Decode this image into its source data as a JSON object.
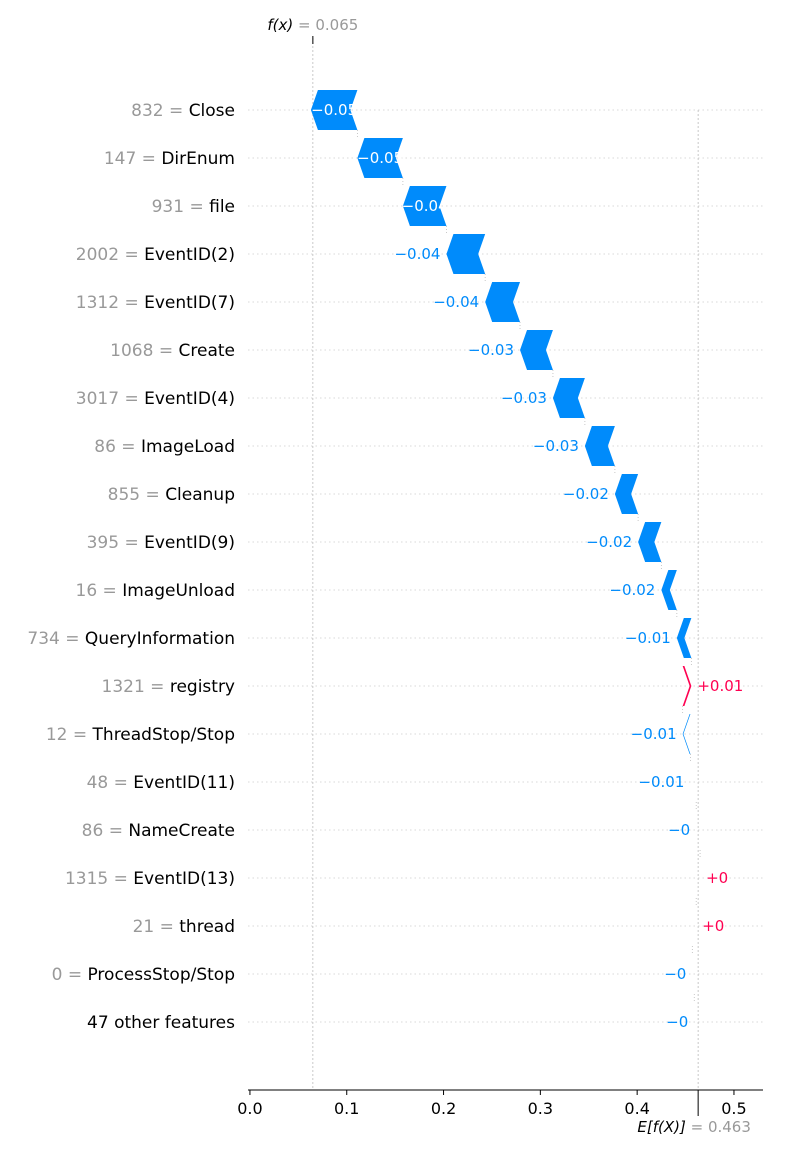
{
  "chart_data": {
    "type": "waterfall",
    "fx_label": "f(x)",
    "fx_value": "= 0.065",
    "efx_label": "E[f(X)]",
    "efx_value": "= 0.463",
    "fx": 0.065,
    "efx": 0.463,
    "xlim": [
      -0.002,
      0.53
    ],
    "xticks": [
      "0.0",
      "0.1",
      "0.2",
      "0.3",
      "0.4",
      "0.5"
    ],
    "features": [
      {
        "value": "832",
        "name": "Close",
        "shap": -0.048,
        "label": "−0.05"
      },
      {
        "value": "147",
        "name": "DirEnum",
        "shap": -0.047,
        "label": "−0.05"
      },
      {
        "value": "931",
        "name": "file",
        "shap": -0.045,
        "label": "−0.04"
      },
      {
        "value": "2002",
        "name": "EventID(2)",
        "shap": -0.04,
        "label": "−0.04"
      },
      {
        "value": "1312",
        "name": "EventID(7)",
        "shap": -0.036,
        "label": "−0.04"
      },
      {
        "value": "1068",
        "name": "Create",
        "shap": -0.034,
        "label": "−0.03"
      },
      {
        "value": "3017",
        "name": "EventID(4)",
        "shap": -0.033,
        "label": "−0.03"
      },
      {
        "value": "86",
        "name": "ImageLoad",
        "shap": -0.031,
        "label": "−0.03"
      },
      {
        "value": "855",
        "name": "Cleanup",
        "shap": -0.024,
        "label": "−0.02"
      },
      {
        "value": "395",
        "name": "EventID(9)",
        "shap": -0.024,
        "label": "−0.02"
      },
      {
        "value": "16",
        "name": "ImageUnload",
        "shap": -0.016,
        "label": "−0.02"
      },
      {
        "value": "734",
        "name": "QueryInformation",
        "shap": -0.015,
        "label": "−0.01"
      },
      {
        "value": "1321",
        "name": "registry",
        "shap": 0.009,
        "label": "+0.01"
      },
      {
        "value": "12",
        "name": "ThreadStop/Stop",
        "shap": -0.008,
        "label": "−0.01"
      },
      {
        "value": "48",
        "name": "EventID(11)",
        "shap": -0.006,
        "label": "−0.01"
      },
      {
        "value": "86",
        "name": "NameCreate",
        "shap": -0.004,
        "label": "−0"
      },
      {
        "value": "1315",
        "name": "EventID(13)",
        "shap": 0.004,
        "label": "+0"
      },
      {
        "value": "21",
        "name": "thread",
        "shap": 0.004,
        "label": "+0"
      },
      {
        "value": "0",
        "name": "ProcessStop/Stop",
        "shap": -0.002,
        "label": "−0"
      },
      {
        "value": "",
        "name": "47 other features",
        "shap": -0.004,
        "label": "−0"
      }
    ],
    "colors": {
      "negative": "#008bfb",
      "positive": "#ff0051",
      "muted": "#999999",
      "text": "#000000"
    }
  }
}
